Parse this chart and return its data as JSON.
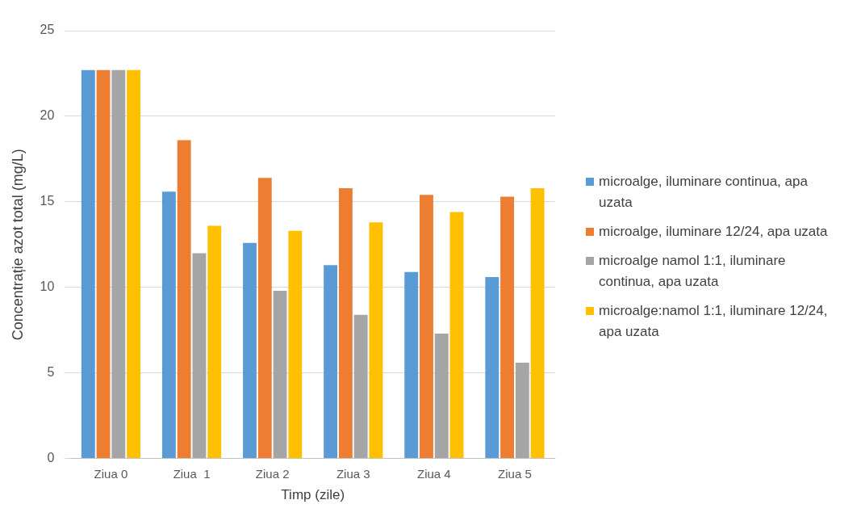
{
  "chart_data": {
    "type": "bar",
    "xlabel": "Timp (zile)",
    "ylabel": "Concentrație azot total (mg/L)",
    "categories": [
      "Ziua 0",
      "Ziua  1",
      "Ziua 2",
      "Ziua 3",
      "Ziua 4",
      "Ziua 5"
    ],
    "series": [
      {
        "name": "microalge, iluminare continua, apa uzata",
        "color": "#5b9bd5",
        "values": [
          22.7,
          15.6,
          12.6,
          11.3,
          10.9,
          10.6
        ]
      },
      {
        "name": "microalge, iluminare 12/24, apa uzata",
        "color": "#ed7d31",
        "values": [
          22.7,
          18.6,
          16.4,
          15.8,
          15.4,
          15.3
        ]
      },
      {
        "name": "microalge namol 1:1, iluminare continua, apa uzata",
        "color": "#a5a5a5",
        "values": [
          22.7,
          12.0,
          9.8,
          8.4,
          7.3,
          5.6
        ]
      },
      {
        "name": "microalge:namol 1:1, iluminare 12/24, apa uzata",
        "color": "#ffc000",
        "values": [
          22.7,
          13.6,
          13.3,
          13.8,
          14.4,
          15.8
        ]
      }
    ],
    "ylim": [
      0,
      25
    ],
    "yticks": [
      0,
      5,
      10,
      15,
      20,
      25
    ],
    "grid": "y",
    "legend": "right"
  }
}
